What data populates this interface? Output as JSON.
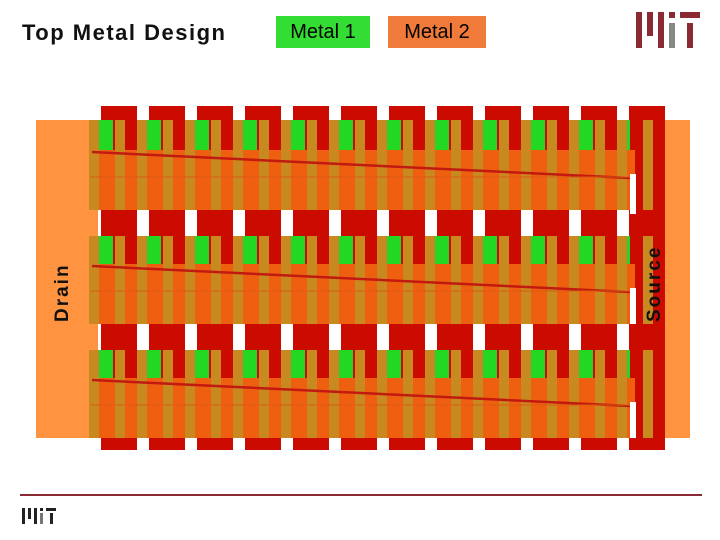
{
  "header": {
    "title": "Top Metal Design",
    "legend": [
      {
        "label": "Metal 1",
        "color": "#33dd33"
      },
      {
        "label": "Metal 2",
        "color": "#f07a3a"
      }
    ]
  },
  "diagram": {
    "drain_label": "Drain",
    "source_label": "Source",
    "colors": {
      "metal1": "#22d822",
      "metal2": "#ff9340",
      "metal2_strip": "#ee6010",
      "poly": "#cc0b00",
      "via": "#c88a20",
      "connector_line": "#c21a10"
    },
    "banks": 3,
    "fingers_per_bank": 12
  },
  "logos": {
    "top": "mit-logo",
    "bottom": "mit-logo"
  }
}
